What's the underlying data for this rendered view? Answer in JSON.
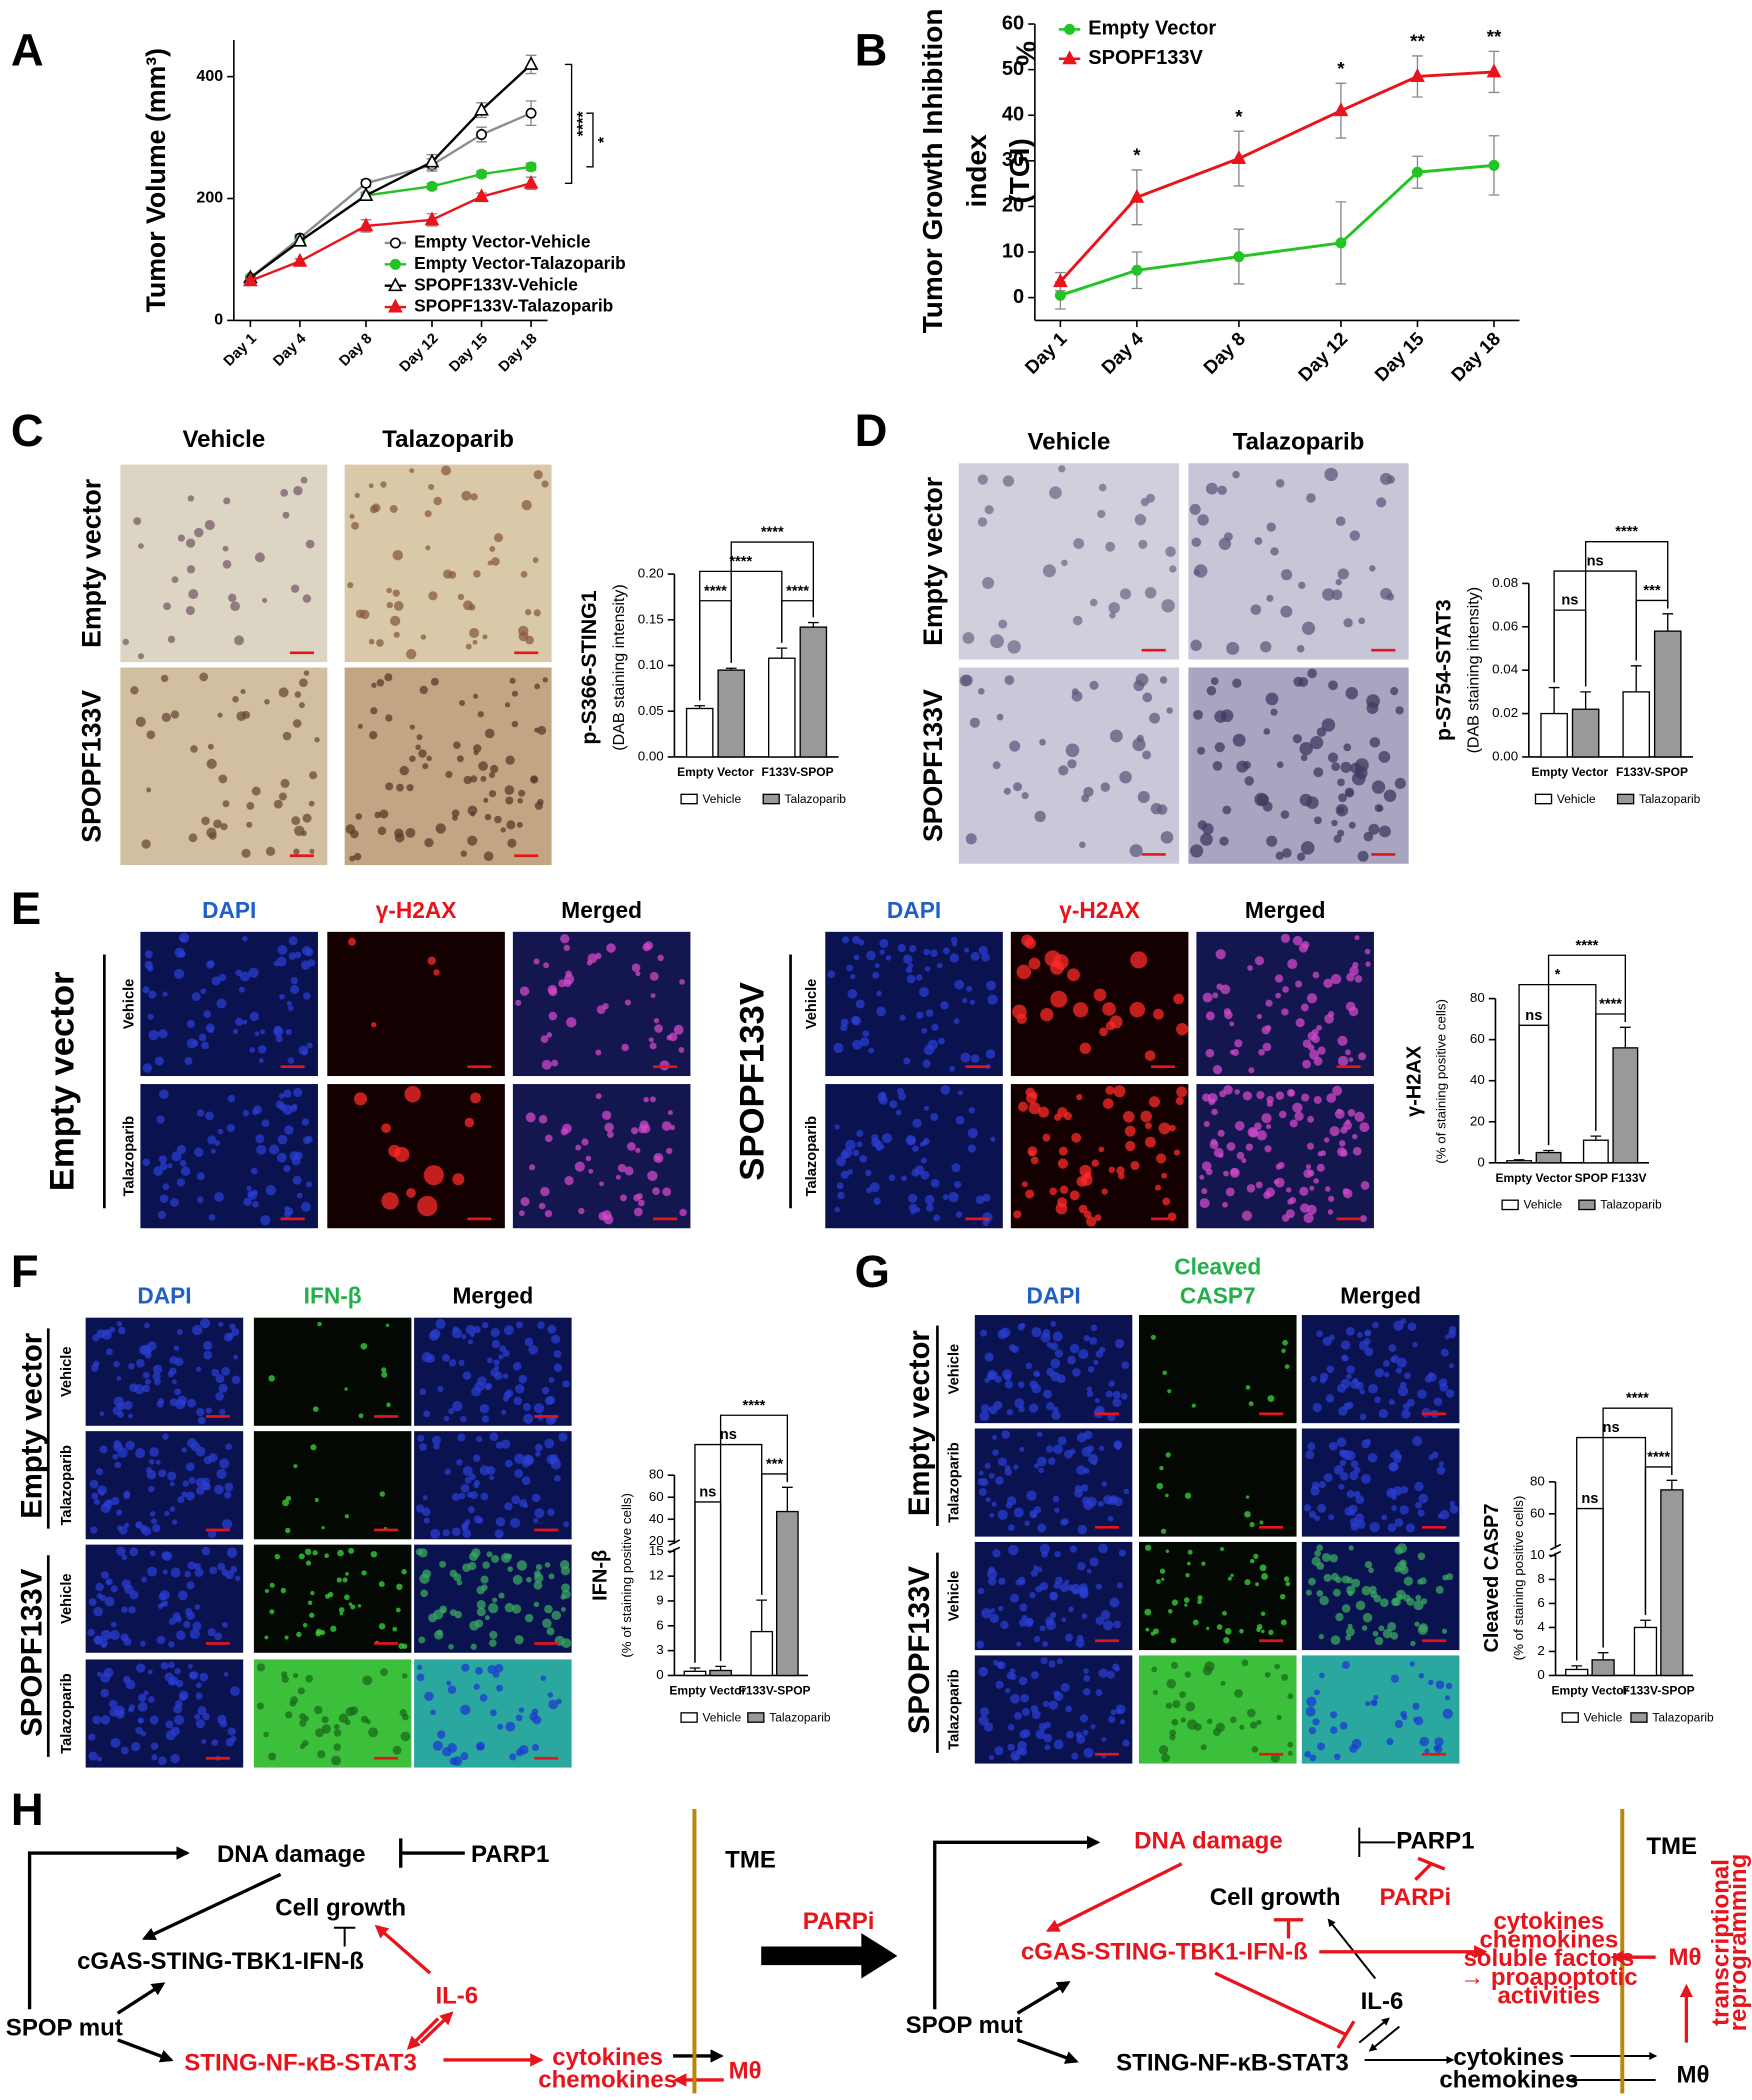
{
  "panel_labels": [
    "A",
    "B",
    "C",
    "D",
    "E",
    "F",
    "G",
    "H"
  ],
  "chart_data": [
    {
      "type": "line",
      "y_label": [
        "Tumor Volume (mm³)"
      ],
      "x": [
        1,
        4,
        8,
        12,
        15,
        18
      ],
      "xlim": [
        0,
        19
      ],
      "xticks": [
        {
          "value": 1,
          "label": "Day 1"
        },
        {
          "value": 4,
          "label": "Day 4"
        },
        {
          "value": 8,
          "label": "Day 8"
        },
        {
          "value": 12,
          "label": "Day 12"
        },
        {
          "value": 15,
          "label": "Day 15"
        },
        {
          "value": 18,
          "label": "Day 18"
        }
      ],
      "ylim": [
        0,
        460
      ],
      "yticks": [
        0,
        200,
        400
      ],
      "series": [
        {
          "name": "Empty Vector-Vehicle",
          "color": "#8c8c8c",
          "marker": "circle-open",
          "values": [
            70,
            135,
            225,
            255,
            305,
            340
          ],
          "errors": [
            3,
            6,
            6,
            10,
            12,
            20
          ]
        },
        {
          "name": "Empty Vector-Talazoparib",
          "color": "#22c322",
          "marker": "circle",
          "values": [
            70,
            130,
            205,
            220,
            240,
            252
          ],
          "errors": [
            3,
            5,
            5,
            5,
            5,
            6
          ]
        },
        {
          "name": "SPOPF133V-Vehicle",
          "color": "#000000",
          "marker": "triangle-open",
          "values": [
            70,
            130,
            205,
            260,
            345,
            420
          ],
          "errors": [
            3,
            5,
            5,
            12,
            12,
            15
          ]
        },
        {
          "name": "SPOPF133V-Talazoparib",
          "color": "#e8141c",
          "marker": "triangle",
          "values": [
            65,
            97,
            155,
            165,
            203,
            225
          ],
          "errors": [
            3,
            4,
            10,
            10,
            6,
            10
          ]
        }
      ],
      "annotations": [
        "****",
        "*"
      ]
    },
    {
      "type": "line",
      "y_label": [
        "Tumor Growth Inhibition",
        "index",
        "(TGI)",
        "%"
      ],
      "x": [
        1,
        4,
        8,
        12,
        15,
        18
      ],
      "xlim": [
        0,
        19
      ],
      "xticks": [
        {
          "value": 1,
          "label": "Day 1"
        },
        {
          "value": 4,
          "label": "Day 4"
        },
        {
          "value": 8,
          "label": "Day 8"
        },
        {
          "value": 12,
          "label": "Day 12"
        },
        {
          "value": 15,
          "label": "Day 15"
        },
        {
          "value": 18,
          "label": "Day 18"
        }
      ],
      "ylim": [
        -5,
        60
      ],
      "yticks": [
        0,
        10,
        20,
        30,
        40,
        50,
        60
      ],
      "series": [
        {
          "name": "Empty Vector",
          "color": "#22c322",
          "marker": "circle",
          "values": [
            0.5,
            6,
            9,
            12,
            27.5,
            29
          ],
          "errors": [
            3,
            4,
            6,
            9,
            3.5,
            6.5
          ]
        },
        {
          "name": "SPOPF133V",
          "color": "#e8141c",
          "marker": "triangle",
          "values": [
            3.5,
            22,
            30.5,
            41,
            48.5,
            49.5
          ],
          "errors": [
            2,
            6,
            6,
            6,
            4.5,
            4.5
          ]
        }
      ],
      "annotations": [
        null,
        "*",
        "*",
        "*",
        "**",
        "**"
      ]
    },
    {
      "type": "bar",
      "y_label": [
        "p-S366-STING1",
        "(DAB staining intensity)"
      ],
      "categories": [
        "Empty Vector",
        "F133V-SPOP"
      ],
      "series": [
        {
          "name": "Vehicle",
          "color": "#ffffff",
          "values": [
            0.053,
            0.108
          ],
          "errors": [
            0.003,
            0.011
          ]
        },
        {
          "name": "Talazoparib",
          "color": "#999999",
          "values": [
            0.095,
            0.142
          ],
          "errors": [
            0.002,
            0.005
          ]
        }
      ],
      "ylim": [
        0,
        0.2
      ],
      "yticks": [
        {
          "value": 0,
          "label": "0.00"
        },
        {
          "value": 0.05,
          "label": "0.05"
        },
        {
          "value": 0.1,
          "label": "0.10"
        },
        {
          "value": 0.15,
          "label": "0.15"
        },
        {
          "value": 0.2,
          "label": "0.20"
        }
      ],
      "annotations": [
        "****",
        "****",
        "****",
        "****"
      ]
    },
    {
      "type": "bar",
      "y_label": [
        "p-S754-STAT3",
        "(DAB staining intensity)"
      ],
      "categories": [
        "Empty Vector",
        "F133V-SPOP"
      ],
      "series": [
        {
          "name": "Vehicle",
          "color": "#ffffff",
          "values": [
            0.02,
            0.03
          ],
          "errors": [
            0.012,
            0.012
          ]
        },
        {
          "name": "Talazoparib",
          "color": "#999999",
          "values": [
            0.022,
            0.058
          ],
          "errors": [
            0.008,
            0.008
          ]
        }
      ],
      "ylim": [
        0,
        0.08
      ],
      "yticks": [
        {
          "value": 0,
          "label": "0.00"
        },
        {
          "value": 0.02,
          "label": "0.02"
        },
        {
          "value": 0.04,
          "label": "0.04"
        },
        {
          "value": 0.06,
          "label": "0.06"
        },
        {
          "value": 0.08,
          "label": "0.08"
        }
      ],
      "annotations": [
        "ns",
        "***",
        "ns",
        "****"
      ]
    },
    {
      "type": "bar",
      "y_label": [
        "γ-H2AX",
        "(% of staining positive cells)"
      ],
      "categories": [
        "Empty Vector",
        "SPOP F133V"
      ],
      "series": [
        {
          "name": "Vehicle",
          "color": "#ffffff",
          "values": [
            1,
            11
          ],
          "errors": [
            0.5,
            2
          ]
        },
        {
          "name": "Talazoparib",
          "color": "#999999",
          "values": [
            5,
            56
          ],
          "errors": [
            1,
            10
          ]
        }
      ],
      "ylim": [
        0,
        80
      ],
      "yticks": [
        0,
        20,
        40,
        60,
        80
      ],
      "annotations": [
        "ns",
        "****",
        "*",
        "****"
      ]
    },
    {
      "type": "bar",
      "y_label": [
        "IFN-β",
        "(% of staining positive cells)"
      ],
      "categories": [
        "Empty Vector",
        "F133V-SPOP"
      ],
      "series": [
        {
          "name": "Vehicle",
          "color": "#ffffff",
          "values": [
            0.5,
            5.3
          ],
          "errors": [
            0.4,
            3.8
          ]
        },
        {
          "name": "Talazoparib",
          "color": "#999999",
          "values": [
            0.6,
            47
          ],
          "errors": [
            0.5,
            22
          ]
        }
      ],
      "ylim": [
        0,
        80
      ],
      "y_break": [
        15,
        20
      ],
      "yticks": [
        0,
        3,
        6,
        9,
        12,
        15,
        20,
        40,
        60,
        80
      ],
      "annotations": [
        "ns",
        "***",
        "ns",
        "****"
      ]
    },
    {
      "type": "bar",
      "y_label": [
        "Cleaved CASP7",
        "(% of staining positive cells)"
      ],
      "categories": [
        "Empty Vector",
        "F133V-SPOP"
      ],
      "series": [
        {
          "name": "Vehicle",
          "color": "#ffffff",
          "values": [
            0.5,
            4
          ],
          "errors": [
            0.3,
            0.6
          ]
        },
        {
          "name": "Talazoparib",
          "color": "#999999",
          "values": [
            1.3,
            75
          ],
          "errors": [
            0.6,
            6
          ]
        }
      ],
      "ylim": [
        0,
        80
      ],
      "y_break": [
        10,
        40
      ],
      "yticks": [
        0,
        2,
        4,
        6,
        8,
        10,
        60,
        80
      ],
      "annotations": [
        "ns",
        "****",
        "ns",
        "****"
      ]
    }
  ],
  "micrographs": {
    "C": {
      "columns": [
        "Vehicle",
        "Talazoparib"
      ],
      "rows": [
        "Empty vector",
        "SPOPF133V"
      ]
    },
    "D": {
      "columns": [
        "Vehicle",
        "Talazoparib"
      ],
      "rows": [
        "Empty vector",
        "SPOPF133V"
      ]
    },
    "E": {
      "groups": [
        {
          "title": "Empty vector",
          "columns": [
            "DAPI",
            "γ-H2AX",
            "Merged"
          ],
          "rows": [
            "Vehicle",
            "Talazoparib"
          ]
        },
        {
          "title": "SPOPF133V",
          "columns": [
            "DAPI",
            "γ-H2AX",
            "Merged"
          ],
          "rows": [
            "Vehicle",
            "Talazoparib"
          ]
        }
      ]
    },
    "F": {
      "columns": [
        "DAPI",
        "IFN-β",
        "Merged"
      ],
      "groups": [
        {
          "title": "Empty vector",
          "rows": [
            "Vehicle",
            "Talazoparib"
          ]
        },
        {
          "title": "SPOPF133V",
          "rows": [
            "Vehicle",
            "Talazoparib"
          ]
        }
      ]
    },
    "G": {
      "columns": [
        "DAPI",
        [
          "Cleaved",
          "CASP7"
        ],
        "Merged"
      ],
      "groups": [
        {
          "title": "Empty vector",
          "rows": [
            "Vehicle",
            "Talazoparib"
          ]
        },
        {
          "title": "SPOPF133V",
          "rows": [
            "Vehicle",
            "Talazoparib"
          ]
        }
      ]
    }
  },
  "diagram": {
    "left": {
      "dna_damage": "DNA damage",
      "parp1": "PARP1",
      "cell_growth": "Cell growth",
      "cgas": "cGAS-STING-TBK1-IFN-ß",
      "il6": "IL-6",
      "spop": "SPOP mut",
      "sting": "STING-NF-κB-STAT3",
      "tme": "TME",
      "cytokines": [
        "cytokines",
        "chemokines"
      ],
      "macrophage": "Mθ"
    },
    "treatment": "PARPi",
    "right": {
      "dna_damage": "DNA damage",
      "parp1": "PARP1",
      "parpi": "PARPi",
      "cell_growth": "Cell growth",
      "cgas": "cGAS-STING-TBK1-IFN-ß",
      "il6": "IL-6",
      "spop": "SPOP mut",
      "sting": "STING-NF-κB-STAT3",
      "cytokines": [
        "cytokines",
        "chemokines"
      ],
      "tme": "TME",
      "factors": [
        "cytokines",
        "chemokines",
        "soluble factors",
        "→ proapoptotic",
        "activities"
      ],
      "macrophage_active": "Mθ",
      "macrophage": "Mθ",
      "reprogramming": [
        "transcriptional",
        "reprogramming"
      ]
    }
  }
}
